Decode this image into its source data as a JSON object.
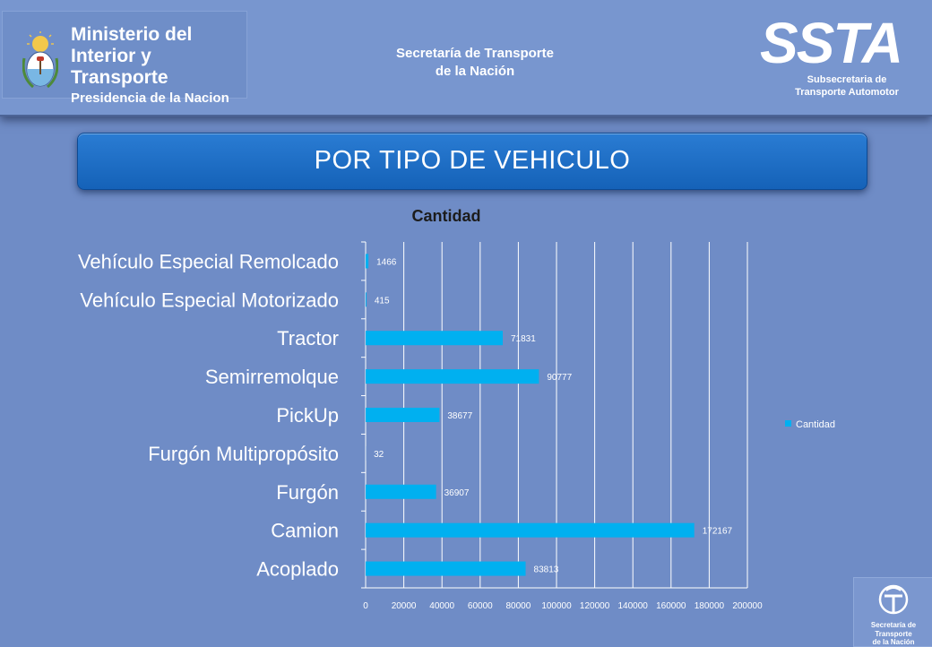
{
  "header": {
    "ministry_lines": [
      "Ministerio del",
      "Interior y Transporte",
      "Presidencia de la Nacion"
    ],
    "secretaria_lines": [
      "Secretaría de Transporte",
      "de la Nación"
    ],
    "ssta_logo_text": "SSTA",
    "ssta_sub_lines": [
      "Subsecretaria de",
      "Transporte Automotor"
    ]
  },
  "banner": {
    "title": "POR TIPO DE VEHICULO"
  },
  "chart_data": {
    "type": "bar",
    "orientation": "horizontal",
    "title": "Cantidad",
    "categories": [
      "Vehículo Especial Remolcado",
      "Vehículo Especial Motorizado",
      "Tractor",
      "Semirremolque",
      "PickUp",
      "Furgón Multipropósito",
      "Furgón",
      "Camion",
      "Acoplado"
    ],
    "series": [
      {
        "name": "Cantidad",
        "values": [
          1466,
          415,
          71831,
          90777,
          38677,
          32,
          36907,
          172167,
          83813
        ]
      }
    ],
    "xlim": [
      0,
      200000
    ],
    "xticks": [
      0,
      20000,
      40000,
      60000,
      80000,
      100000,
      120000,
      140000,
      160000,
      180000,
      200000
    ],
    "grid": true,
    "legend": "right",
    "bar_color": "#00b0f0",
    "grid_color": "#ffffff"
  },
  "footer": {
    "corner_lines": [
      "Secretaría de Transporte",
      "de la Nación"
    ]
  }
}
